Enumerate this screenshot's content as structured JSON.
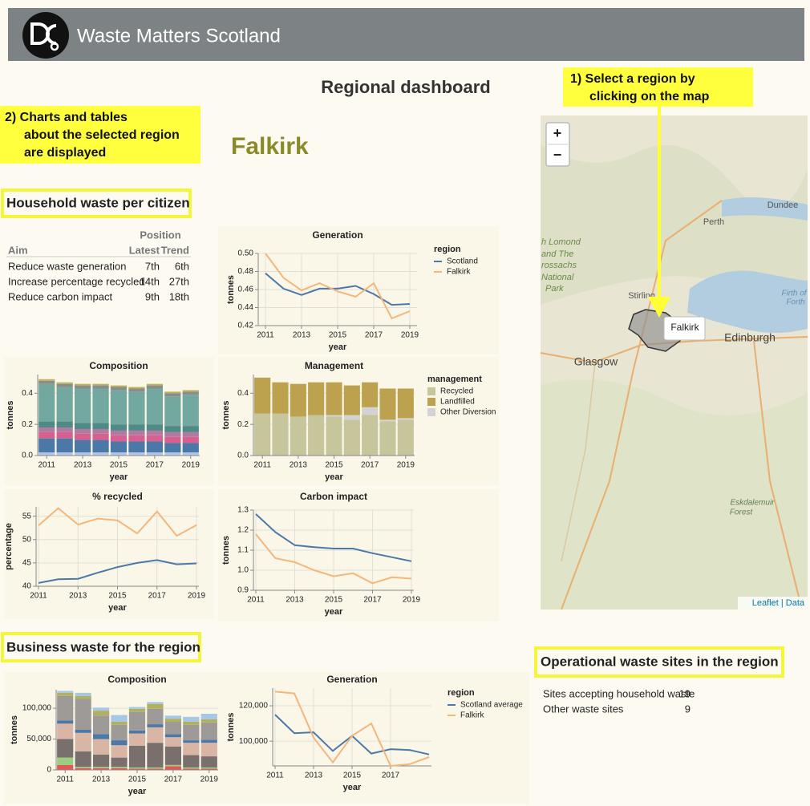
{
  "header": {
    "title": "Waste Matters Scotland"
  },
  "page_title": "Regional dashboard",
  "callout_map": [
    "1) Select a region by",
    "clicking on the map"
  ],
  "callout_charts": [
    "2) Charts and tables",
    "about the selected region",
    "are displayed"
  ],
  "region": "Falkirk",
  "sections": {
    "household": "Household waste per citizen",
    "business": "Business waste for the region",
    "sites": "Operational waste sites in the region"
  },
  "position_table": {
    "group": "Position",
    "columns": [
      "Aim",
      "Latest",
      "Trend"
    ],
    "rows": [
      [
        "Reduce waste generation",
        "7th",
        "6th"
      ],
      [
        "Increase percentage recycled",
        "14th",
        "27th"
      ],
      [
        "Reduce carbon impact",
        "9th",
        "18th"
      ]
    ]
  },
  "sites_table": {
    "rows": [
      [
        "Sites accepting household waste",
        "19"
      ],
      [
        "Other waste sites",
        "9"
      ]
    ]
  },
  "map": {
    "zoom": [
      "+",
      "−"
    ],
    "tooltip": "Falkirk",
    "labels": [
      "Dundee",
      "Perth",
      "h Lomond",
      "and The",
      "rossachs",
      "National",
      "Park",
      "Stirling",
      "Firth of",
      "Forth",
      "Edinburgh",
      "Glasgow",
      "Eskdalemuir",
      "Forest"
    ],
    "attribution": "Leaflet | Data"
  },
  "chart_data": [
    {
      "type": "line",
      "title": "Generation",
      "x_label": "year",
      "y_label": "tonnes",
      "x": [
        2011,
        2012,
        2013,
        2014,
        2015,
        2016,
        2017,
        2018,
        2019
      ],
      "xlim": [
        2011,
        2019
      ],
      "xticks": [
        2011,
        2013,
        2015,
        2017,
        2019
      ],
      "ylim": [
        0.42,
        0.5
      ],
      "yticks": [
        0.42,
        0.44,
        0.46,
        0.48,
        {
          "value": 0.5,
          "label": "0.50"
        }
      ],
      "grid": true,
      "legend_title": "region",
      "series": [
        {
          "name": "Scotland",
          "color": "#4c78a8",
          "values": [
            0.478,
            0.461,
            0.454,
            0.461,
            0.461,
            0.464,
            0.455,
            0.443,
            0.444
          ]
        },
        {
          "name": "Falkirk",
          "color": "#f4b67a",
          "values": [
            0.5,
            0.473,
            0.459,
            0.467,
            0.458,
            0.452,
            0.467,
            0.428,
            0.436
          ]
        }
      ]
    },
    {
      "type": "bar",
      "stacked": true,
      "title": "Composition",
      "x_label": "year",
      "y_label": "tonnes",
      "categories": [
        "2011",
        null,
        "2013",
        null,
        "2015",
        null,
        "2017",
        null,
        "2019"
      ],
      "ylim": [
        0,
        0.52
      ],
      "yticks": [
        {
          "value": 0,
          "label": "0.0"
        },
        0.2,
        0.4
      ],
      "grid": true,
      "series": [
        {
          "color": "#aec7e8",
          "values": [
            0.02,
            0.02,
            0.02,
            0.02,
            0.02,
            0.02,
            0.02,
            0.02,
            0.02
          ]
        },
        {
          "color": "#4c78a8",
          "values": [
            0.09,
            0.09,
            0.08,
            0.08,
            0.07,
            0.07,
            0.07,
            0.06,
            0.06
          ]
        },
        {
          "color": "#d6618f",
          "values": [
            0.04,
            0.04,
            0.04,
            0.04,
            0.04,
            0.04,
            0.04,
            0.04,
            0.04
          ]
        },
        {
          "color": "#b279a2",
          "values": [
            0.03,
            0.03,
            0.03,
            0.03,
            0.03,
            0.03,
            0.03,
            0.03,
            0.03
          ]
        },
        {
          "color": "#4e8a86",
          "values": [
            0.04,
            0.04,
            0.04,
            0.04,
            0.04,
            0.04,
            0.04,
            0.04,
            0.04
          ]
        },
        {
          "color": "#72a8a0",
          "values": [
            0.24,
            0.22,
            0.22,
            0.22,
            0.22,
            0.21,
            0.23,
            0.19,
            0.2
          ]
        },
        {
          "color": "#8c8c8c",
          "values": [
            0.02,
            0.02,
            0.02,
            0.02,
            0.02,
            0.02,
            0.02,
            0.02,
            0.02
          ]
        },
        {
          "color": "#b8b45a",
          "values": [
            0.01,
            0.01,
            0.01,
            0.01,
            0.01,
            0.01,
            0.01,
            0.01,
            0.01
          ]
        }
      ]
    },
    {
      "type": "bar",
      "stacked": true,
      "title": "Management",
      "x_label": "year",
      "y_label": "tonnes",
      "categories": [
        "2011",
        null,
        "2013",
        null,
        "2015",
        null,
        "2017",
        null,
        "2019"
      ],
      "ylim": [
        0,
        0.52
      ],
      "yticks": [
        {
          "value": 0,
          "label": "0.0"
        },
        0.2,
        0.4
      ],
      "grid": true,
      "legend_title": "management",
      "series": [
        {
          "name": "Recycled",
          "color": "#c6c59b",
          "values": [
            0.27,
            0.27,
            0.25,
            0.26,
            0.25,
            0.23,
            0.26,
            0.22,
            0.23
          ]
        },
        {
          "name": "Landfilled",
          "color": "#bca24e",
          "values": [
            0.23,
            0.2,
            0.21,
            0.21,
            0.21,
            0.19,
            0.16,
            0.2,
            0.19
          ]
        },
        {
          "name": "Other Diversion",
          "color": "#d3d3d3",
          "values": [
            0,
            0,
            0,
            0,
            0.01,
            0.03,
            0.05,
            0.01,
            0.01
          ]
        }
      ]
    },
    {
      "type": "line",
      "title": "% recycled",
      "x_label": "year",
      "y_label": "percentage",
      "x": [
        2011,
        2012,
        2013,
        2014,
        2015,
        2016,
        2017,
        2018,
        2019
      ],
      "xlim": [
        2011,
        2019
      ],
      "xticks": [
        2011,
        2013,
        2015,
        2017,
        2019
      ],
      "ylim": [
        40,
        57
      ],
      "yticks": [
        40,
        45,
        50,
        55
      ],
      "grid": true,
      "series": [
        {
          "color": "#4c78a8",
          "values": [
            40.7,
            41.5,
            41.6,
            42.9,
            44.1,
            45.0,
            45.6,
            44.7,
            44.9
          ]
        },
        {
          "color": "#f4b67a",
          "values": [
            53.0,
            56.7,
            53.2,
            54.5,
            54.1,
            51.3,
            56.0,
            50.8,
            53.1
          ]
        }
      ]
    },
    {
      "type": "line",
      "title": "Carbon impact",
      "x_label": "year",
      "y_label": "tonnes",
      "x": [
        2011,
        2012,
        2013,
        2014,
        2015,
        2016,
        2017,
        2018,
        2019
      ],
      "xlim": [
        2011,
        2019
      ],
      "xticks": [
        2011,
        2013,
        2015,
        2017,
        2019
      ],
      "ylim": [
        0.9,
        1.3
      ],
      "yticks": [
        0.9,
        {
          "value": 1,
          "label": "1.0"
        },
        1.1,
        1.2,
        1.3
      ],
      "grid": true,
      "series": [
        {
          "color": "#4c78a8",
          "values": [
            1.28,
            1.19,
            1.125,
            1.115,
            1.108,
            1.108,
            1.085,
            1.065,
            1.045
          ]
        },
        {
          "color": "#f4b67a",
          "values": [
            1.18,
            1.06,
            1.04,
            1.0,
            0.97,
            0.985,
            0.935,
            0.965,
            0.958
          ]
        }
      ]
    },
    {
      "type": "bar",
      "stacked": true,
      "title": "Composition",
      "x_label": "year",
      "y_label": "tonnes",
      "categories": [
        "2011",
        null,
        "2013",
        null,
        "2015",
        null,
        "2017",
        null,
        "2019"
      ],
      "ylim": [
        0,
        130000
      ],
      "yticks": [
        0,
        {
          "value": 50000,
          "label": "50,000"
        },
        {
          "value": 100000,
          "label": "100,000"
        }
      ],
      "grid": true,
      "series": [
        {
          "color": "#e45756",
          "values": [
            8000,
            3000,
            3000,
            3000,
            2000,
            2000,
            6000,
            2000,
            2000
          ]
        },
        {
          "color": "#9ccc7e",
          "values": [
            12000,
            2000,
            2000,
            2000,
            2000,
            2000,
            2000,
            2000,
            2000
          ]
        },
        {
          "color": "#79706e",
          "values": [
            30000,
            25000,
            20000,
            15000,
            35000,
            40000,
            30000,
            20000,
            18000
          ]
        },
        {
          "color": "#d8b5a5",
          "values": [
            25000,
            30000,
            25000,
            20000,
            20000,
            25000,
            15000,
            20000,
            22000
          ]
        },
        {
          "color": "#4c78a8",
          "values": [
            5000,
            5000,
            8000,
            8000,
            5000,
            5000,
            5000,
            4000,
            5000
          ]
        },
        {
          "color": "#9d9a98",
          "values": [
            40000,
            50000,
            30000,
            25000,
            30000,
            25000,
            20000,
            25000,
            28000
          ]
        },
        {
          "color": "#b0b060",
          "values": [
            5000,
            5000,
            8000,
            5000,
            5000,
            8000,
            5000,
            5000,
            5000
          ]
        },
        {
          "color": "#a5c8e4",
          "values": [
            3000,
            5000,
            5000,
            11000,
            3000,
            3000,
            5000,
            8000,
            9000
          ]
        }
      ]
    },
    {
      "type": "line",
      "title": "Generation",
      "x_label": "year",
      "y_label": "tonnes",
      "x": [
        2011,
        2012,
        2013,
        2014,
        2015,
        2016,
        2017,
        2018,
        2019
      ],
      "xlim": [
        2011,
        2019
      ],
      "xticks": [
        2011,
        2013,
        2015,
        2017
      ],
      "ylim": [
        86000,
        130000
      ],
      "yticks": [
        {
          "value": 100000,
          "label": "100,000"
        },
        {
          "value": 120000,
          "label": "120,000"
        }
      ],
      "grid": true,
      "legend_title": "region",
      "series": [
        {
          "name": "Scotland average",
          "color": "#4c78a8",
          "values": [
            115000,
            104500,
            105000,
            94500,
            103000,
            93000,
            95500,
            95000,
            92500
          ]
        },
        {
          "name": "Falkirk",
          "color": "#f4b67a",
          "values": [
            128000,
            127000,
            102000,
            88000,
            103000,
            110000,
            86000,
            87000,
            91000
          ]
        }
      ]
    }
  ]
}
